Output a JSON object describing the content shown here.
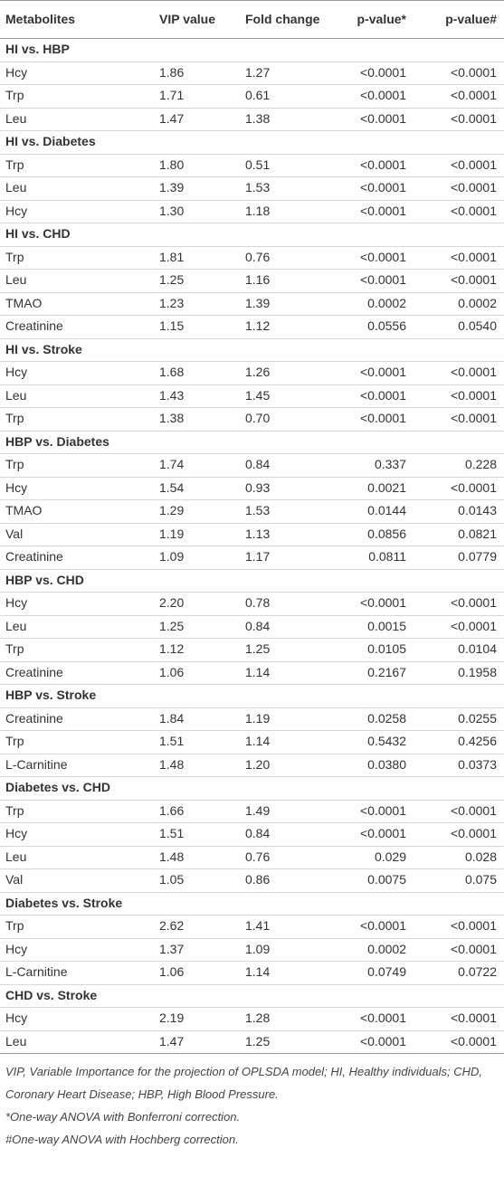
{
  "table": {
    "header": [
      "Metabolites",
      "VIP value",
      "Fold change",
      "p-value*",
      "p-value#"
    ],
    "groups": [
      {
        "title": "HI vs. HBP",
        "rows": [
          [
            "Hcy",
            "1.86",
            "1.27",
            "<0.0001",
            "<0.0001"
          ],
          [
            "Trp",
            "1.71",
            "0.61",
            "<0.0001",
            "<0.0001"
          ],
          [
            "Leu",
            "1.47",
            "1.38",
            "<0.0001",
            "<0.0001"
          ]
        ]
      },
      {
        "title": "HI vs. Diabetes",
        "rows": [
          [
            "Trp",
            "1.80",
            "0.51",
            "<0.0001",
            "<0.0001"
          ],
          [
            "Leu",
            "1.39",
            "1.53",
            "<0.0001",
            "<0.0001"
          ],
          [
            "Hcy",
            "1.30",
            "1.18",
            "<0.0001",
            "<0.0001"
          ]
        ]
      },
      {
        "title": "HI vs. CHD",
        "rows": [
          [
            "Trp",
            "1.81",
            "0.76",
            "<0.0001",
            "<0.0001"
          ],
          [
            "Leu",
            "1.25",
            "1.16",
            "<0.0001",
            "<0.0001"
          ],
          [
            "TMAO",
            "1.23",
            "1.39",
            "0.0002",
            "0.0002"
          ],
          [
            "Creatinine",
            "1.15",
            "1.12",
            "0.0556",
            "0.0540"
          ]
        ]
      },
      {
        "title": "HI vs. Stroke",
        "rows": [
          [
            "Hcy",
            "1.68",
            "1.26",
            "<0.0001",
            "<0.0001"
          ],
          [
            "Leu",
            "1.43",
            "1.45",
            "<0.0001",
            "<0.0001"
          ],
          [
            "Trp",
            "1.38",
            "0.70",
            "<0.0001",
            "<0.0001"
          ]
        ]
      },
      {
        "title": "HBP vs. Diabetes",
        "rows": [
          [
            "Trp",
            "1.74",
            "0.84",
            "0.337",
            "0.228"
          ],
          [
            "Hcy",
            "1.54",
            "0.93",
            "0.0021",
            "<0.0001"
          ],
          [
            "TMAO",
            "1.29",
            "1.53",
            "0.0144",
            "0.0143"
          ],
          [
            "Val",
            "1.19",
            "1.13",
            "0.0856",
            "0.0821"
          ],
          [
            "Creatinine",
            "1.09",
            "1.17",
            "0.0811",
            "0.0779"
          ]
        ]
      },
      {
        "title": "HBP vs. CHD",
        "rows": [
          [
            "Hcy",
            "2.20",
            "0.78",
            "<0.0001",
            "<0.0001"
          ],
          [
            "Leu",
            "1.25",
            "0.84",
            "0.0015",
            "<0.0001"
          ],
          [
            "Trp",
            "1.12",
            "1.25",
            "0.0105",
            "0.0104"
          ],
          [
            "Creatinine",
            "1.06",
            "1.14",
            "0.2167",
            "0.1958"
          ]
        ]
      },
      {
        "title": "HBP vs. Stroke",
        "rows": [
          [
            "Creatinine",
            "1.84",
            "1.19",
            "0.0258",
            "0.0255"
          ],
          [
            "Trp",
            "1.51",
            "1.14",
            "0.5432",
            "0.4256"
          ],
          [
            "L-Carnitine",
            "1.48",
            "1.20",
            "0.0380",
            "0.0373"
          ]
        ]
      },
      {
        "title": "Diabetes vs. CHD",
        "rows": [
          [
            "Trp",
            "1.66",
            "1.49",
            "<0.0001",
            "<0.0001"
          ],
          [
            "Hcy",
            "1.51",
            "0.84",
            "<0.0001",
            "<0.0001"
          ],
          [
            "Leu",
            "1.48",
            "0.76",
            "0.029",
            "0.028"
          ],
          [
            "Val",
            "1.05",
            "0.86",
            "0.0075",
            "0.075"
          ]
        ]
      },
      {
        "title": "Diabetes vs. Stroke",
        "rows": [
          [
            "Trp",
            "2.62",
            "1.41",
            "<0.0001",
            "<0.0001"
          ],
          [
            "Hcy",
            "1.37",
            "1.09",
            "0.0002",
            "<0.0001"
          ],
          [
            "L-Carnitine",
            "1.06",
            "1.14",
            "0.0749",
            "0.0722"
          ]
        ]
      },
      {
        "title": "CHD vs. Stroke",
        "rows": [
          [
            "Hcy",
            "2.19",
            "1.28",
            "<0.0001",
            "<0.0001"
          ],
          [
            "Leu",
            "1.47",
            "1.25",
            "<0.0001",
            "<0.0001"
          ]
        ]
      }
    ],
    "footnotes": [
      "VIP, Variable Importance for the projection of OPLSDA model; HI, Healthy individuals; CHD, Coronary Heart Disease; HBP, High Blood Pressure.",
      "*One-way ANOVA with Bonferroni correction.",
      "#One-way ANOVA with Hochberg correction."
    ]
  }
}
